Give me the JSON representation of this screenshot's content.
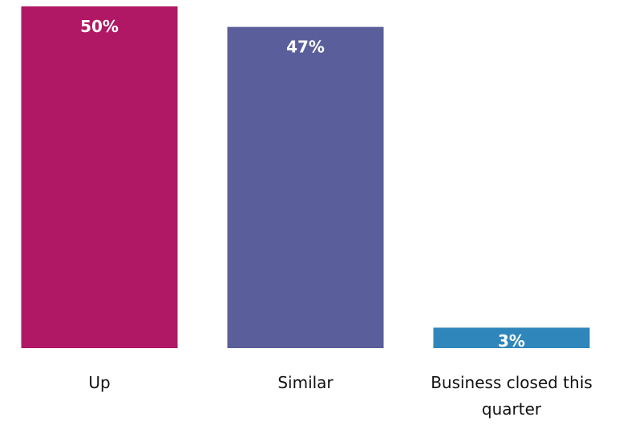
{
  "chart_data": {
    "type": "bar",
    "categories": [
      "Up",
      "Similar",
      "Business closed this quarter"
    ],
    "category_lines": [
      [
        "Up"
      ],
      [
        "Similar"
      ],
      [
        "Business closed this",
        "quarter"
      ]
    ],
    "values": [
      50,
      47,
      3
    ],
    "data_labels": [
      "50%",
      "47%",
      "3%"
    ],
    "colors": [
      "#b01764",
      "#5a5f9b",
      "#2e86ba"
    ],
    "ylim": [
      0,
      50
    ],
    "grid": false,
    "legend": "none"
  }
}
